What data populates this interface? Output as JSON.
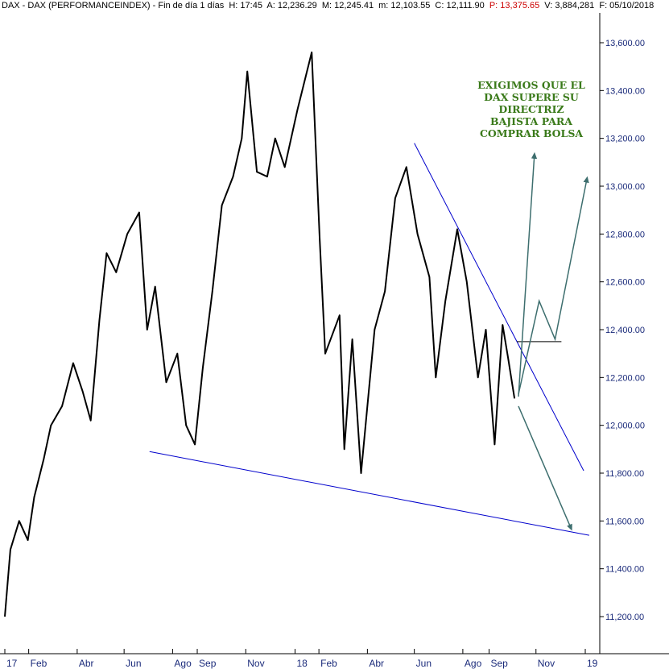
{
  "header": {
    "symbol": "DAX - DAX (PERFORMANCEINDEX) - Fin de día 1 días",
    "h": "H: 17:45",
    "a": "A: 12,236.29",
    "m": "M: 12,245.41",
    "mm": "m: 12,103.55",
    "c": "C: 12,111.90",
    "p": "P: 13,375.65",
    "v": "V: 3,884,281",
    "f": "F: 05/10/2018"
  },
  "annotation": [
    "EXIGIMOS QUE EL",
    "DAX SUPERE SU",
    "DIRECTRIZ",
    "BAJISTA PARA",
    "COMPRAR BOLSA"
  ],
  "colors": {
    "axis_text": "#1a2a7a",
    "trendline": "#0000cc",
    "arrows": "#3d6e6e",
    "annotation": "#3a7a1a",
    "price_line": "#000000"
  },
  "chart_data": {
    "type": "line",
    "title": "DAX - DAX (PERFORMANCEINDEX)",
    "ylabel": "",
    "xlabel": "",
    "ylim": [
      11100,
      13650
    ],
    "y_ticks": [
      11200,
      11400,
      11600,
      11800,
      12000,
      12200,
      12400,
      12600,
      12800,
      13000,
      13200,
      13400,
      13600
    ],
    "y_tick_labels": [
      "11,200.00",
      "11,400.00",
      "11,600.00",
      "11,800.00",
      "12,000.00",
      "12,200.00",
      "12,400.00",
      "12,600.00",
      "12,800.00",
      "13,000.00",
      "13,200.00",
      "13,400.00",
      "13,600.00"
    ],
    "x_ticks": [
      {
        "label": "17",
        "date": "2017-01-02"
      },
      {
        "label": "Feb",
        "date": "2017-02-01"
      },
      {
        "label": "Abr",
        "date": "2017-04-03"
      },
      {
        "label": "Jun",
        "date": "2017-06-01"
      },
      {
        "label": "Ago",
        "date": "2017-08-01"
      },
      {
        "label": "Sep",
        "date": "2017-09-01"
      },
      {
        "label": "Nov",
        "date": "2017-11-01"
      },
      {
        "label": "18",
        "date": "2018-01-02"
      },
      {
        "label": "Feb",
        "date": "2018-02-01"
      },
      {
        "label": "Abr",
        "date": "2018-04-03"
      },
      {
        "label": "Jun",
        "date": "2018-06-01"
      },
      {
        "label": "Ago",
        "date": "2018-08-01"
      },
      {
        "label": "Sep",
        "date": "2018-09-03"
      },
      {
        "label": "Nov",
        "date": "2018-11-01"
      },
      {
        "label": "19",
        "date": "2019-01-02"
      }
    ],
    "price_series": {
      "name": "DAX",
      "points": [
        {
          "date": "2017-01-02",
          "value": 11200
        },
        {
          "date": "2017-01-09",
          "value": 11480
        },
        {
          "date": "2017-01-20",
          "value": 11600
        },
        {
          "date": "2017-01-31",
          "value": 11520
        },
        {
          "date": "2017-02-08",
          "value": 11700
        },
        {
          "date": "2017-02-20",
          "value": 11860
        },
        {
          "date": "2017-03-01",
          "value": 12000
        },
        {
          "date": "2017-03-15",
          "value": 12080
        },
        {
          "date": "2017-03-29",
          "value": 12260
        },
        {
          "date": "2017-04-10",
          "value": 12140
        },
        {
          "date": "2017-04-20",
          "value": 12020
        },
        {
          "date": "2017-05-01",
          "value": 12440
        },
        {
          "date": "2017-05-10",
          "value": 12720
        },
        {
          "date": "2017-05-22",
          "value": 12640
        },
        {
          "date": "2017-06-05",
          "value": 12800
        },
        {
          "date": "2017-06-20",
          "value": 12890
        },
        {
          "date": "2017-06-30",
          "value": 12400
        },
        {
          "date": "2017-07-10",
          "value": 12580
        },
        {
          "date": "2017-07-24",
          "value": 12180
        },
        {
          "date": "2017-08-07",
          "value": 12300
        },
        {
          "date": "2017-08-18",
          "value": 12000
        },
        {
          "date": "2017-08-29",
          "value": 11920
        },
        {
          "date": "2017-09-08",
          "value": 12240
        },
        {
          "date": "2017-09-20",
          "value": 12560
        },
        {
          "date": "2017-10-02",
          "value": 12920
        },
        {
          "date": "2017-10-16",
          "value": 13040
        },
        {
          "date": "2017-10-27",
          "value": 13200
        },
        {
          "date": "2017-11-03",
          "value": 13480
        },
        {
          "date": "2017-11-15",
          "value": 13060
        },
        {
          "date": "2017-11-28",
          "value": 13040
        },
        {
          "date": "2017-12-08",
          "value": 13200
        },
        {
          "date": "2017-12-20",
          "value": 13080
        },
        {
          "date": "2018-01-05",
          "value": 13320
        },
        {
          "date": "2018-01-23",
          "value": 13560
        },
        {
          "date": "2018-02-02",
          "value": 12780
        },
        {
          "date": "2018-02-09",
          "value": 12300
        },
        {
          "date": "2018-02-27",
          "value": 12460
        },
        {
          "date": "2018-03-05",
          "value": 11900
        },
        {
          "date": "2018-03-15",
          "value": 12360
        },
        {
          "date": "2018-03-26",
          "value": 11800
        },
        {
          "date": "2018-04-12",
          "value": 12400
        },
        {
          "date": "2018-04-25",
          "value": 12560
        },
        {
          "date": "2018-05-08",
          "value": 12950
        },
        {
          "date": "2018-05-22",
          "value": 13080
        },
        {
          "date": "2018-06-05",
          "value": 12800
        },
        {
          "date": "2018-06-20",
          "value": 12620
        },
        {
          "date": "2018-06-28",
          "value": 12200
        },
        {
          "date": "2018-07-10",
          "value": 12520
        },
        {
          "date": "2018-07-25",
          "value": 12820
        },
        {
          "date": "2018-08-06",
          "value": 12600
        },
        {
          "date": "2018-08-20",
          "value": 12200
        },
        {
          "date": "2018-08-30",
          "value": 12400
        },
        {
          "date": "2018-09-10",
          "value": 11920
        },
        {
          "date": "2018-09-20",
          "value": 12420
        },
        {
          "date": "2018-09-27",
          "value": 12280
        },
        {
          "date": "2018-10-05",
          "value": 12112
        }
      ]
    },
    "trendlines": [
      {
        "name": "directriz bajista",
        "from": {
          "date": "2018-06-01",
          "value": 13180
        },
        "to": {
          "date": "2018-12-31",
          "value": 11810
        }
      },
      {
        "name": "soporte",
        "from": {
          "date": "2017-07-03",
          "value": 11890
        },
        "to": {
          "date": "2019-01-07",
          "value": 11540
        }
      }
    ],
    "level_segment": {
      "from": {
        "date": "2018-10-08",
        "value": 12350
      },
      "to": {
        "date": "2018-12-03",
        "value": 12350
      }
    },
    "scenario_arrows": [
      {
        "points": [
          {
            "date": "2018-10-10",
            "value": 12120
          },
          {
            "date": "2018-10-30",
            "value": 13130
          }
        ]
      },
      {
        "points": [
          {
            "date": "2018-10-10",
            "value": 12130
          },
          {
            "date": "2018-11-05",
            "value": 12520
          },
          {
            "date": "2018-11-25",
            "value": 12360
          },
          {
            "date": "2019-01-04",
            "value": 13030
          }
        ]
      },
      {
        "points": [
          {
            "date": "2018-10-10",
            "value": 12080
          },
          {
            "date": "2018-12-15",
            "value": 11570
          }
        ]
      }
    ]
  }
}
